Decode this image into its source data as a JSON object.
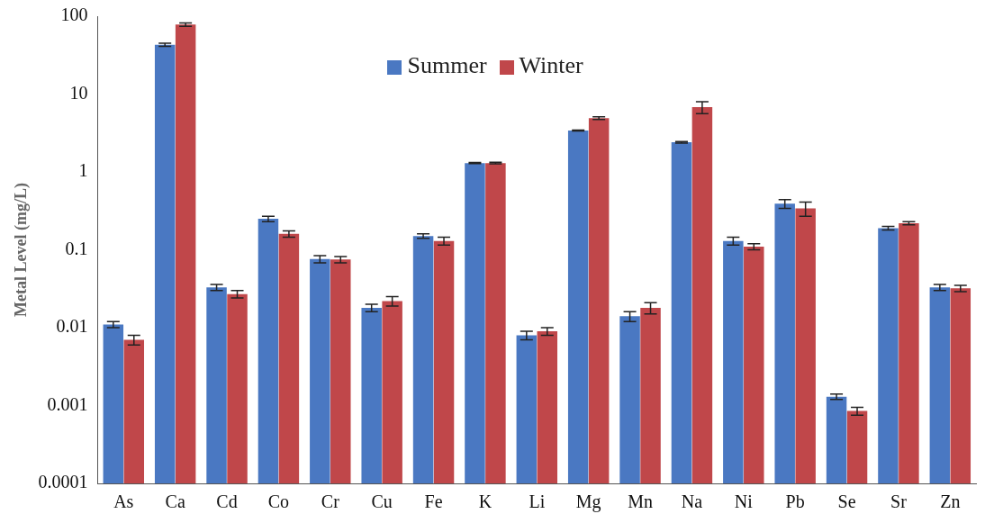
{
  "chart_data": {
    "type": "bar",
    "ylabel": "Metal Level (mg/L)",
    "categories": [
      "As",
      "Ca",
      "Cd",
      "Co",
      "Cr",
      "Cu",
      "Fe",
      "K",
      "Li",
      "Mg",
      "Mn",
      "Na",
      "Ni",
      "Pb",
      "Se",
      "Sr",
      "Zn"
    ],
    "series": [
      {
        "name": "Summer",
        "color": "#4a78c2",
        "values": [
          0.011,
          43,
          0.033,
          0.25,
          0.076,
          0.018,
          0.15,
          1.3,
          0.008,
          3.4,
          0.014,
          2.4,
          0.13,
          0.39,
          0.0013,
          0.19,
          0.033
        ],
        "errors": [
          0.001,
          2,
          0.003,
          0.02,
          0.008,
          0.002,
          0.01,
          0.02,
          0.001,
          0.05,
          0.002,
          0.05,
          0.015,
          0.05,
          0.0001,
          0.01,
          0.003
        ]
      },
      {
        "name": "Winter",
        "color": "#c0474a",
        "values": [
          0.007,
          78,
          0.027,
          0.16,
          0.075,
          0.022,
          0.13,
          1.3,
          0.009,
          4.9,
          0.018,
          6.8,
          0.11,
          0.34,
          0.00085,
          0.22,
          0.032
        ],
        "errors": [
          0.001,
          4,
          0.003,
          0.015,
          0.007,
          0.003,
          0.015,
          0.03,
          0.001,
          0.2,
          0.003,
          1.2,
          0.01,
          0.07,
          0.0001,
          0.01,
          0.003
        ]
      }
    ],
    "log": "y",
    "ylim": [
      0.0001,
      100
    ],
    "yticks": [
      0.0001,
      0.001,
      0.01,
      0.1,
      1,
      10,
      100
    ],
    "grid": false,
    "legend": "top"
  }
}
